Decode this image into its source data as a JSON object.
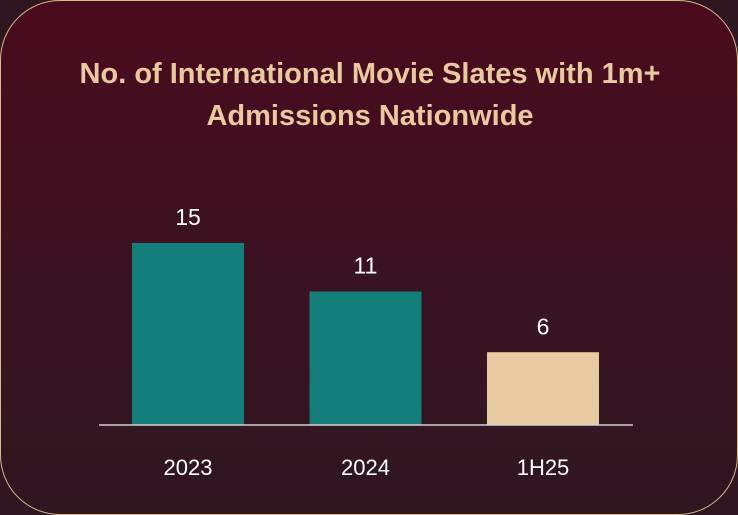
{
  "chart_data": {
    "type": "bar",
    "title": "No. of International Movie Slates with 1m+ Admissions Nationwide",
    "categories": [
      "2023",
      "2024",
      "1H25"
    ],
    "values": [
      15,
      11,
      6
    ],
    "colors": [
      "#137e7a",
      "#137e7a",
      "#e8c9a0"
    ]
  }
}
